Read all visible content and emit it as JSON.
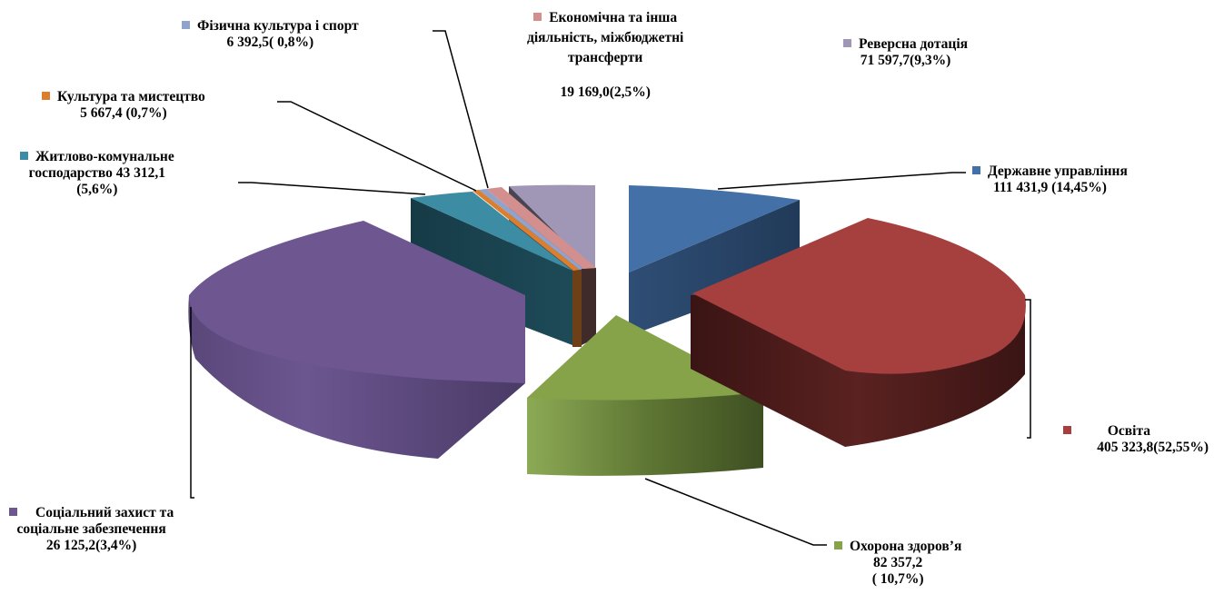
{
  "chart_data": {
    "type": "pie",
    "variant": "3d-exploded",
    "legend": "labels-with-leader-lines",
    "slices": [
      {
        "id": "derzh",
        "name": "Державне управління",
        "value": 111431.9,
        "percent": 14.45,
        "color": "#4470A8",
        "label_lines": [
          "Державне управління",
          "111 431,9 (14,45%)"
        ]
      },
      {
        "id": "osvita",
        "name": "Освіта",
        "value": 405323.8,
        "percent": 52.55,
        "color": "#A5403F",
        "label_lines": [
          "Освіта",
          "405 323,8(52,55%)"
        ]
      },
      {
        "id": "ohorona",
        "name": "Охорона здоров’я",
        "value": 82357.2,
        "percent": 10.7,
        "color": "#86A34A",
        "label_lines": [
          "Охорона здоров’я",
          "82 357,2",
          "( 10,7%)"
        ]
      },
      {
        "id": "soc",
        "name": "Соціальний захист та соціальне забезпечення",
        "value": 26125.2,
        "percent": 3.4,
        "color": "#6E5791",
        "label_lines": [
          "Соціальний захист та",
          "соціальне забезпечення",
          "26 125,2(3,4%)"
        ]
      },
      {
        "id": "zhytlo",
        "name": "Житлово-комунальне господарство",
        "value": 43312.1,
        "percent": 5.6,
        "color": "#3C8DA3",
        "label_lines": [
          "Житлово-комунальне",
          "господарство 43 312,1",
          "(5,6%)"
        ]
      },
      {
        "id": "kult",
        "name": "Культура та мистецтво",
        "value": 5667.4,
        "percent": 0.7,
        "color": "#DB7F2F",
        "label_lines": [
          "Культура та мистецтво",
          "5 667,4 (0,7%)"
        ]
      },
      {
        "id": "fiz",
        "name": "Фізична культура і спорт",
        "value": 6392.5,
        "percent": 0.8,
        "color": "#8FA3CC",
        "label_lines": [
          "Фізична культура і спорт",
          "6 392,5( 0,8%)"
        ]
      },
      {
        "id": "ekon",
        "name": "Економічна та інша діяльність, міжбюджетні трансферти",
        "value": 19169.0,
        "percent": 2.5,
        "color": "#D38F8D",
        "label_lines": [
          "Економічна та інша",
          "діяльність,  міжбюджетні",
          "трансферти",
          "",
          "19 169,0(2,5%)"
        ]
      },
      {
        "id": "revers",
        "name": "Реверсна дотація",
        "value": 71597.7,
        "percent": 9.3,
        "color": "#A097B6",
        "label_lines": [
          "Реверсна дотація",
          "71 597,7(9,3%)"
        ]
      }
    ]
  }
}
